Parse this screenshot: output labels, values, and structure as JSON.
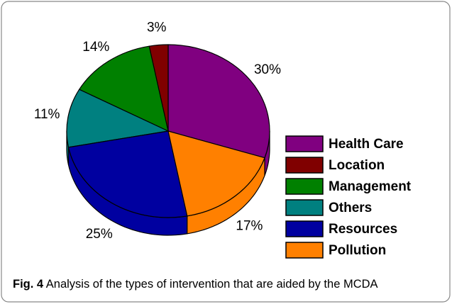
{
  "chart_data": {
    "type": "pie",
    "categories": [
      "Health Care",
      "Location",
      "Management",
      "Others",
      "Resources",
      "Pollution"
    ],
    "values": [
      30,
      3,
      14,
      11,
      25,
      17
    ],
    "value_labels": [
      "30%",
      "3%",
      "14%",
      "11%",
      "25%",
      "17%"
    ],
    "colors": [
      "#800080",
      "#800000",
      "#008000",
      "#008080",
      "#0000a0",
      "#ff8000"
    ],
    "legend": "right",
    "caption_label": "Fig. 4",
    "caption": "Analysis of the types of intervention that are aided by the MCDA"
  }
}
